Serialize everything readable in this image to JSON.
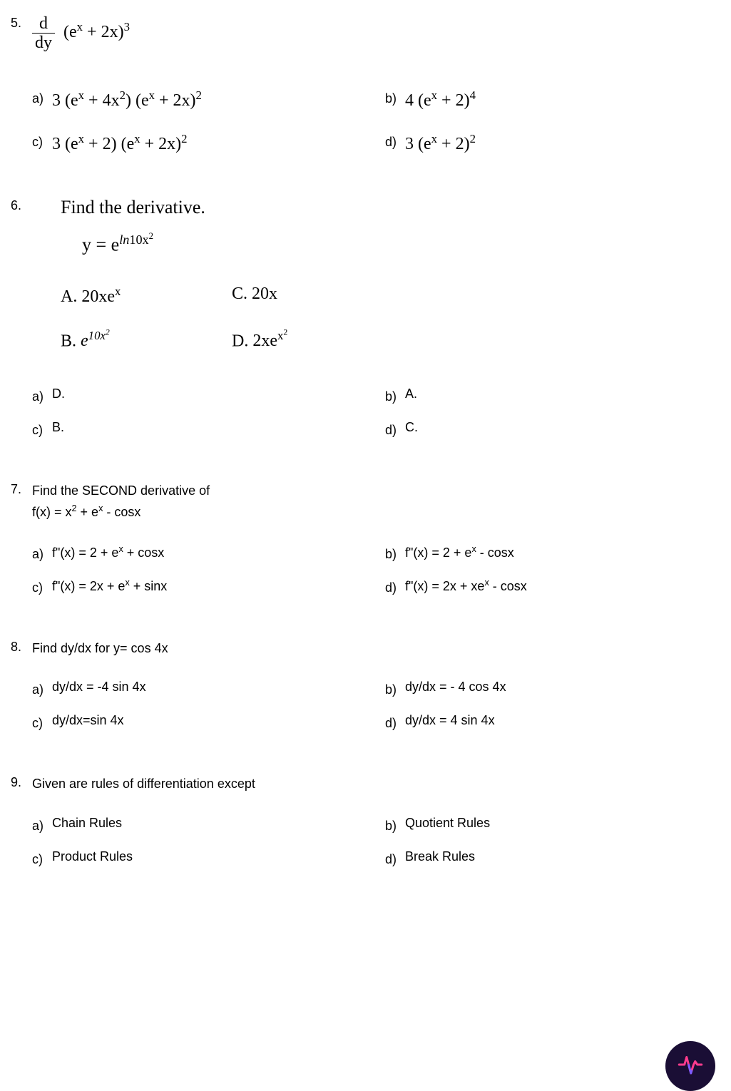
{
  "q5": {
    "number": "5.",
    "stem_frac_top": "d",
    "stem_frac_bot": "dy",
    "stem_expr_html": "(e<sup>x</sup> + 2x)<sup>3</sup>",
    "options": [
      {
        "letter": "a)",
        "html": "3 (e<sup>x</sup> + 4x<sup>2</sup>) (e<sup>x</sup> + 2x)<sup>2</sup>"
      },
      {
        "letter": "b)",
        "html": "4 (e<sup>x</sup> + 2)<sup>4</sup>"
      },
      {
        "letter": "c)",
        "html": "3 (e<sup>x</sup> + 2) (e<sup>x</sup> + 2x)<sup>2</sup>"
      },
      {
        "letter": "d)",
        "html": "3 (e<sup>x</sup> + 2)<sup>2</sup>"
      }
    ]
  },
  "q6": {
    "number": "6.",
    "title": "Find the derivative.",
    "equation_html": "y = e<sup><i>ln</i>10x<sup>2</sup></sup>",
    "img_options": [
      {
        "label": "A.",
        "html": "20xe<sup>x</sup>"
      },
      {
        "label": "C.",
        "html": "20x"
      },
      {
        "label": "B.",
        "html": "e<sup>10x<sup>2</sup></sup>"
      },
      {
        "label": "D.",
        "html": "2xe<sup>x<sup>2</sup></sup>"
      }
    ],
    "answer_options": [
      {
        "letter": "a)",
        "text": "D."
      },
      {
        "letter": "b)",
        "text": "A."
      },
      {
        "letter": "c)",
        "text": "B."
      },
      {
        "letter": "d)",
        "text": "C."
      }
    ]
  },
  "q7": {
    "number": "7.",
    "stem_line1": "Find the SECOND derivative of",
    "stem_line2_html": "f(x) = x<sup>2</sup> + e<sup>x</sup>  - cosx",
    "options": [
      {
        "letter": "a)",
        "html": "f\"(x) = 2 + e<sup>x</sup> + cosx"
      },
      {
        "letter": "b)",
        "html": "f\"(x) = 2 + e<sup>x</sup> - cosx"
      },
      {
        "letter": "c)",
        "html": "f\"(x) = 2x + e<sup>x</sup> + sinx"
      },
      {
        "letter": "d)",
        "html": "f\"(x) = 2x + xe<sup>x</sup> - cosx"
      }
    ]
  },
  "q8": {
    "number": "8.",
    "stem": "Find dy/dx for y= cos 4x",
    "options": [
      {
        "letter": "a)",
        "text": "dy/dx = -4 sin 4x"
      },
      {
        "letter": "b)",
        "text": "dy/dx = - 4 cos 4x"
      },
      {
        "letter": "c)",
        "text": "dy/dx=sin 4x"
      },
      {
        "letter": "d)",
        "text": "dy/dx = 4 sin 4x"
      }
    ]
  },
  "q9": {
    "number": "9.",
    "stem": "Given are rules of differentiation except",
    "options": [
      {
        "letter": "a)",
        "text": "Chain Rules"
      },
      {
        "letter": "b)",
        "text": "Quotient Rules"
      },
      {
        "letter": "c)",
        "text": "Product Rules"
      },
      {
        "letter": "d)",
        "text": "Break Rules"
      }
    ]
  },
  "fab": {
    "stroke_colors": [
      "#ff3b8d",
      "#7b5cff"
    ],
    "background": "#1a0e35"
  }
}
